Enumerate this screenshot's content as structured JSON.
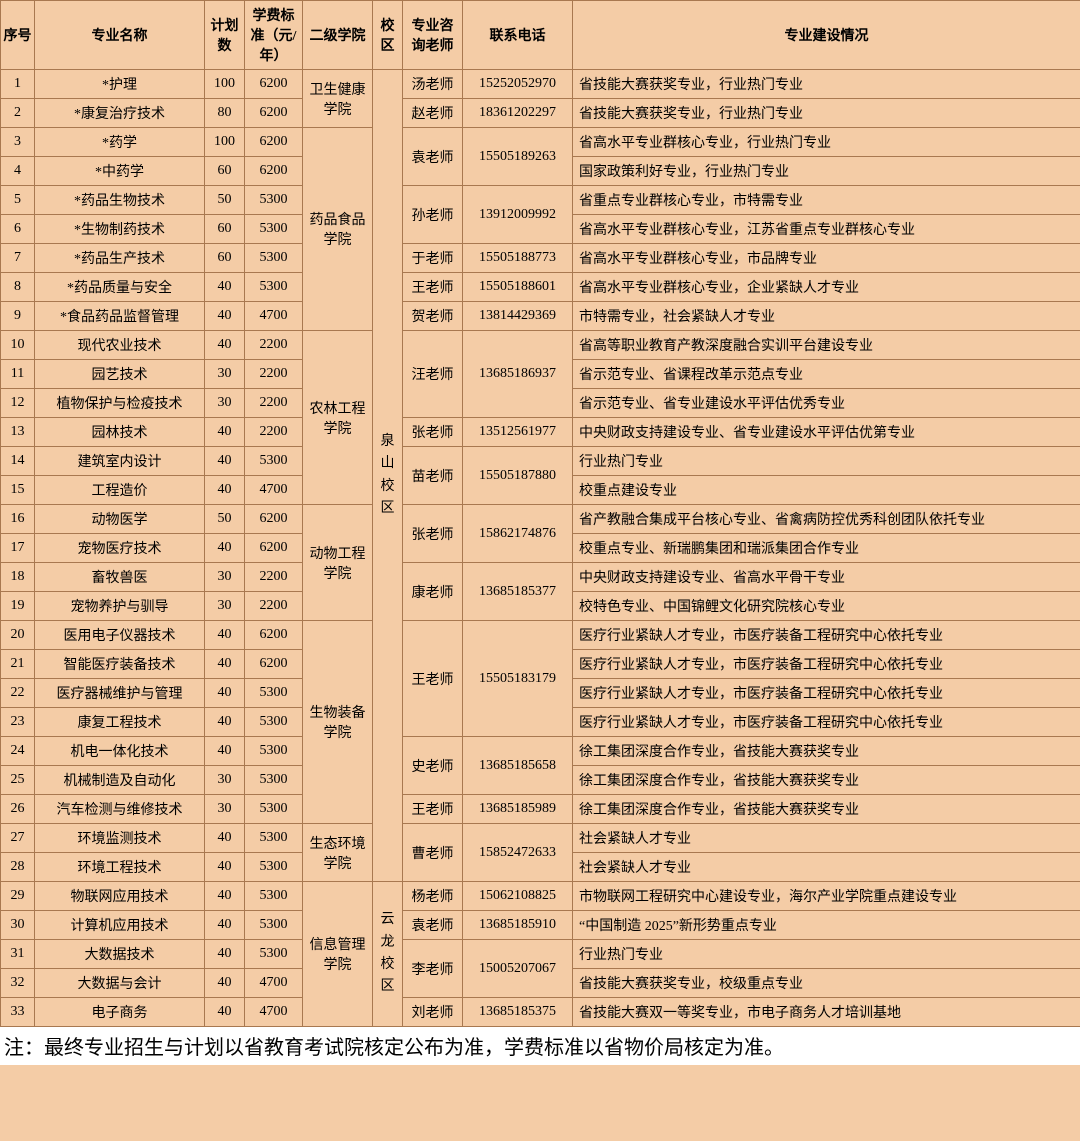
{
  "headers": {
    "idx": "序号",
    "major": "专业名称",
    "plan": "计划数",
    "tuition": "学费标准（元/年）",
    "college": "二级学院",
    "campus": "校区",
    "teacher": "专业咨询老师",
    "phone": "联系电话",
    "status": "专业建设情况"
  },
  "col_widths": {
    "idx": 34,
    "major": 170,
    "plan": 40,
    "tuition": 58,
    "college": 70,
    "campus": 30,
    "teacher": 60,
    "phone": 110,
    "status": 508
  },
  "campuses": [
    {
      "name": "泉山校区",
      "rows": [
        1,
        2,
        3,
        4,
        5,
        6,
        7,
        8,
        9,
        10,
        11,
        12,
        13,
        14,
        15,
        16,
        17,
        18,
        19,
        20,
        21,
        22,
        23,
        24,
        25,
        26,
        27,
        28
      ]
    },
    {
      "name": "云龙校区",
      "rows": [
        29,
        30,
        31,
        32,
        33
      ]
    }
  ],
  "colleges": [
    {
      "name": "卫生健康学院",
      "rows": [
        1,
        2
      ]
    },
    {
      "name": "药品食品学院",
      "rows": [
        3,
        4,
        5,
        6,
        7,
        8,
        9
      ]
    },
    {
      "name": "农林工程学院",
      "rows": [
        10,
        11,
        12,
        13,
        14,
        15
      ]
    },
    {
      "name": "动物工程学院",
      "rows": [
        16,
        17,
        18,
        19
      ]
    },
    {
      "name": "生物装备学院",
      "rows": [
        20,
        21,
        22,
        23,
        24,
        25,
        26
      ]
    },
    {
      "name": "生态环境学院",
      "rows": [
        27,
        28
      ]
    },
    {
      "name": "信息管理学院",
      "rows": [
        29,
        30,
        31,
        32,
        33
      ]
    }
  ],
  "contacts": [
    {
      "teacher": "汤老师",
      "phone": "15252052970",
      "rows": [
        1
      ]
    },
    {
      "teacher": "赵老师",
      "phone": "18361202297",
      "rows": [
        2
      ]
    },
    {
      "teacher": "袁老师",
      "phone": "15505189263",
      "rows": [
        3,
        4
      ]
    },
    {
      "teacher": "孙老师",
      "phone": "13912009992",
      "rows": [
        5,
        6
      ]
    },
    {
      "teacher": "于老师",
      "phone": "15505188773",
      "rows": [
        7
      ]
    },
    {
      "teacher": "王老师",
      "phone": "15505188601",
      "rows": [
        8
      ]
    },
    {
      "teacher": "贺老师",
      "phone": "13814429369",
      "rows": [
        9
      ]
    },
    {
      "teacher": "汪老师",
      "phone": "13685186937",
      "rows": [
        10,
        11,
        12
      ]
    },
    {
      "teacher": "张老师",
      "phone": "13512561977",
      "rows": [
        13
      ]
    },
    {
      "teacher": "苗老师",
      "phone": "15505187880",
      "rows": [
        14,
        15
      ]
    },
    {
      "teacher": "张老师",
      "phone": "15862174876",
      "rows": [
        16,
        17
      ]
    },
    {
      "teacher": "康老师",
      "phone": "13685185377",
      "rows": [
        18,
        19
      ]
    },
    {
      "teacher": "王老师",
      "phone": "15505183179",
      "rows": [
        20,
        21,
        22,
        23
      ]
    },
    {
      "teacher": "史老师",
      "phone": "13685185658",
      "rows": [
        24,
        25
      ]
    },
    {
      "teacher": "王老师",
      "phone": "13685185989",
      "rows": [
        26
      ]
    },
    {
      "teacher": "曹老师",
      "phone": "15852472633",
      "rows": [
        27,
        28
      ]
    },
    {
      "teacher": "杨老师",
      "phone": "15062108825",
      "rows": [
        29
      ]
    },
    {
      "teacher": "袁老师",
      "phone": "13685185910",
      "rows": [
        30
      ]
    },
    {
      "teacher": "李老师",
      "phone": "15005207067",
      "rows": [
        31,
        32
      ]
    },
    {
      "teacher": "刘老师",
      "phone": "13685185375",
      "rows": [
        33
      ]
    }
  ],
  "rows": [
    {
      "idx": 1,
      "major": "*护理",
      "plan": 100,
      "tuition": 6200,
      "status": "省技能大赛获奖专业，行业热门专业"
    },
    {
      "idx": 2,
      "major": "*康复治疗技术",
      "plan": 80,
      "tuition": 6200,
      "status": "省技能大赛获奖专业，行业热门专业"
    },
    {
      "idx": 3,
      "major": "*药学",
      "plan": 100,
      "tuition": 6200,
      "status": "省高水平专业群核心专业，行业热门专业"
    },
    {
      "idx": 4,
      "major": "*中药学",
      "plan": 60,
      "tuition": 6200,
      "status": "国家政策利好专业，行业热门专业"
    },
    {
      "idx": 5,
      "major": "*药品生物技术",
      "plan": 50,
      "tuition": 5300,
      "status": "省重点专业群核心专业，市特需专业"
    },
    {
      "idx": 6,
      "major": "*生物制药技术",
      "plan": 60,
      "tuition": 5300,
      "status": "省高水平专业群核心专业，江苏省重点专业群核心专业"
    },
    {
      "idx": 7,
      "major": "*药品生产技术",
      "plan": 60,
      "tuition": 5300,
      "status": "省高水平专业群核心专业，市品牌专业"
    },
    {
      "idx": 8,
      "major": "*药品质量与安全",
      "plan": 40,
      "tuition": 5300,
      "status": "省高水平专业群核心专业，企业紧缺人才专业"
    },
    {
      "idx": 9,
      "major": "*食品药品监督管理",
      "plan": 40,
      "tuition": 4700,
      "status": "市特需专业，社会紧缺人才专业"
    },
    {
      "idx": 10,
      "major": "现代农业技术",
      "plan": 40,
      "tuition": 2200,
      "status": "省高等职业教育产教深度融合实训平台建设专业"
    },
    {
      "idx": 11,
      "major": "园艺技术",
      "plan": 30,
      "tuition": 2200,
      "status": "省示范专业、省课程改革示范点专业"
    },
    {
      "idx": 12,
      "major": "植物保护与检疫技术",
      "plan": 30,
      "tuition": 2200,
      "status": "省示范专业、省专业建设水平评估优秀专业"
    },
    {
      "idx": 13,
      "major": "园林技术",
      "plan": 40,
      "tuition": 2200,
      "status": "中央财政支持建设专业、省专业建设水平评估优第专业"
    },
    {
      "idx": 14,
      "major": "建筑室内设计",
      "plan": 40,
      "tuition": 5300,
      "status": "行业热门专业"
    },
    {
      "idx": 15,
      "major": "工程造价",
      "plan": 40,
      "tuition": 4700,
      "status": "校重点建设专业"
    },
    {
      "idx": 16,
      "major": "动物医学",
      "plan": 50,
      "tuition": 6200,
      "status": "省产教融合集成平台核心专业、省禽病防控优秀科创团队依托专业"
    },
    {
      "idx": 17,
      "major": "宠物医疗技术",
      "plan": 40,
      "tuition": 6200,
      "status": "校重点专业、新瑞鹏集团和瑞派集团合作专业"
    },
    {
      "idx": 18,
      "major": "畜牧兽医",
      "plan": 30,
      "tuition": 2200,
      "status": "中央财政支持建设专业、省高水平骨干专业"
    },
    {
      "idx": 19,
      "major": "宠物养护与驯导",
      "plan": 30,
      "tuition": 2200,
      "status": "校特色专业、中国锦鲤文化研究院核心专业"
    },
    {
      "idx": 20,
      "major": "医用电子仪器技术",
      "plan": 40,
      "tuition": 6200,
      "status": "医疗行业紧缺人才专业，市医疗装备工程研究中心依托专业"
    },
    {
      "idx": 21,
      "major": "智能医疗装备技术",
      "plan": 40,
      "tuition": 6200,
      "status": "医疗行业紧缺人才专业，市医疗装备工程研究中心依托专业"
    },
    {
      "idx": 22,
      "major": "医疗器械维护与管理",
      "plan": 40,
      "tuition": 5300,
      "status": "医疗行业紧缺人才专业，市医疗装备工程研究中心依托专业"
    },
    {
      "idx": 23,
      "major": "康复工程技术",
      "plan": 40,
      "tuition": 5300,
      "status": "医疗行业紧缺人才专业，市医疗装备工程研究中心依托专业"
    },
    {
      "idx": 24,
      "major": "机电一体化技术",
      "plan": 40,
      "tuition": 5300,
      "status": "徐工集团深度合作专业，省技能大赛获奖专业"
    },
    {
      "idx": 25,
      "major": "机械制造及自动化",
      "plan": 30,
      "tuition": 5300,
      "status": "徐工集团深度合作专业，省技能大赛获奖专业"
    },
    {
      "idx": 26,
      "major": "汽车检测与维修技术",
      "plan": 30,
      "tuition": 5300,
      "status": "徐工集团深度合作专业，省技能大赛获奖专业"
    },
    {
      "idx": 27,
      "major": "环境监测技术",
      "plan": 40,
      "tuition": 5300,
      "status": "社会紧缺人才专业"
    },
    {
      "idx": 28,
      "major": "环境工程技术",
      "plan": 40,
      "tuition": 5300,
      "status": "社会紧缺人才专业"
    },
    {
      "idx": 29,
      "major": "物联网应用技术",
      "plan": 40,
      "tuition": 5300,
      "status": "市物联网工程研究中心建设专业，海尔产业学院重点建设专业"
    },
    {
      "idx": 30,
      "major": "计算机应用技术",
      "plan": 40,
      "tuition": 5300,
      "status": "“中国制造 2025”新形势重点专业"
    },
    {
      "idx": 31,
      "major": "大数据技术",
      "plan": 40,
      "tuition": 5300,
      "status": "行业热门专业"
    },
    {
      "idx": 32,
      "major": "大数据与会计",
      "plan": 40,
      "tuition": 4700,
      "status": "省技能大赛获奖专业，校级重点专业"
    },
    {
      "idx": 33,
      "major": "电子商务",
      "plan": 40,
      "tuition": 4700,
      "status": "省技能大赛双一等奖专业，市电子商务人才培训基地"
    }
  ],
  "footnote": "注：最终专业招生与计划以省教育考试院核定公布为准，学费标准以省物价局核定为准。",
  "colors": {
    "page_bg": "#f4cca6",
    "border": "#a87850",
    "text": "#000000",
    "footnote_bg": "#ffffff"
  }
}
